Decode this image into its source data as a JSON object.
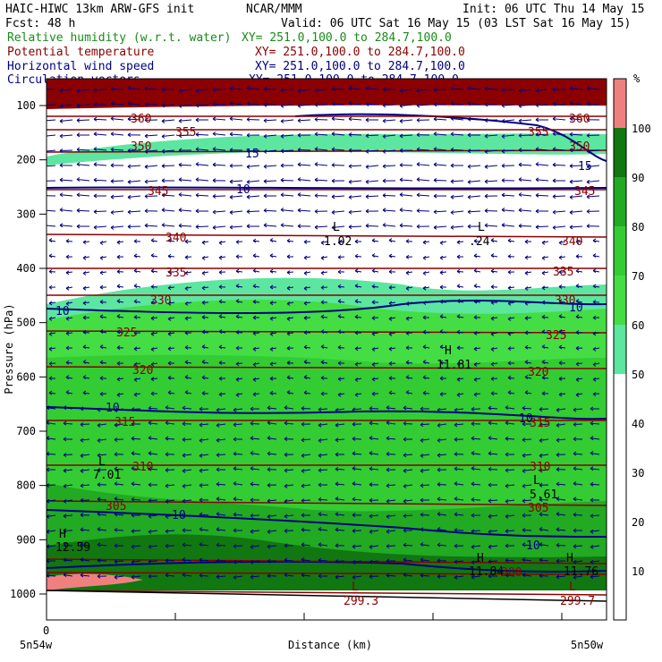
{
  "header": {
    "line1_left": "HAIC-HIWC 13km ARW-GFS init",
    "line1_mid": "NCAR/MMM",
    "line1_right": "Init: 06 UTC Thu 14 May 15",
    "line2_left": "Fcst:   48 h",
    "line2_right": "Valid: 06 UTC Sat 16 May 15 (03 LST Sat 16 May 15)",
    "fields": [
      {
        "name": "Relative humidity (w.r.t. water)",
        "xy": "XY= 251.0,100.0 to 284.7,100.0",
        "color": "#1a8a1a"
      },
      {
        "name": "Potential temperature",
        "xy": "XY= 251.0,100.0 to 284.7,100.0",
        "color": "#8b0000"
      },
      {
        "name": "Horizontal wind speed",
        "xy": "XY= 251.0,100.0 to 284.7,100.0",
        "color": "#000080"
      },
      {
        "name": "Circulation vectors",
        "xy": "XY= 251.0,100.0 to 284.7,100.0",
        "color": "#000080"
      }
    ]
  },
  "chart_data": {
    "type": "heatmap",
    "ylabel": "Pressure (hPa)",
    "xlabel": "Distance (km)",
    "x_zero_label": "0",
    "x_left_label": "5n54w",
    "x_right_label": "5n50w",
    "y_ticks": [
      100,
      200,
      300,
      400,
      500,
      600,
      700,
      800,
      900,
      1000
    ],
    "colorbar": {
      "unit": "%",
      "ticks": [
        10,
        20,
        30,
        40,
        50,
        60,
        70,
        80,
        90,
        100
      ],
      "levels": [
        {
          "from": 0,
          "to": 50,
          "color": "#ffffff"
        },
        {
          "from": 50,
          "to": 60,
          "color": "#5ce6a0"
        },
        {
          "from": 60,
          "to": 70,
          "color": "#44dd44"
        },
        {
          "from": 70,
          "to": 80,
          "color": "#33cc33"
        },
        {
          "from": 80,
          "to": 90,
          "color": "#22aa22"
        },
        {
          "from": 90,
          "to": 100,
          "color": "#117711"
        },
        {
          "from": 100,
          "to": 110,
          "color": "#f08080"
        }
      ]
    },
    "theta_contours": [
      {
        "label": "360",
        "p": 130
      },
      {
        "label": "355",
        "p": 145
      },
      {
        "label": "350",
        "p": 170
      },
      {
        "label": "345",
        "p": 255
      },
      {
        "label": "340",
        "p": 340
      },
      {
        "label": "335",
        "p": 405
      },
      {
        "label": "330",
        "p": 460
      },
      {
        "label": "325",
        "p": 530
      },
      {
        "label": "320",
        "p": 600
      },
      {
        "label": "315",
        "p": 685
      },
      {
        "label": "310",
        "p": 770
      },
      {
        "label": "305",
        "p": 840
      },
      {
        "label": "300",
        "p": 955
      }
    ],
    "wind_labels": [
      "15",
      "10",
      "10",
      "10",
      "10",
      "10",
      "10",
      "15",
      "10"
    ],
    "extrema_labels": [
      {
        "type": "L",
        "value": "1.02"
      },
      {
        "type": "L",
        "value": ".24"
      },
      {
        "type": "H",
        "value": "11.81"
      },
      {
        "type": "L",
        "value": "7.01"
      },
      {
        "type": "L",
        "value": "5.61"
      },
      {
        "type": "H",
        "value": "12.59"
      },
      {
        "type": "H",
        "value": "11.84"
      },
      {
        "type": "H",
        "value": "11.76"
      },
      {
        "type": "L",
        "value": "299.3"
      },
      {
        "type": "L",
        "value": "299.7"
      }
    ]
  }
}
